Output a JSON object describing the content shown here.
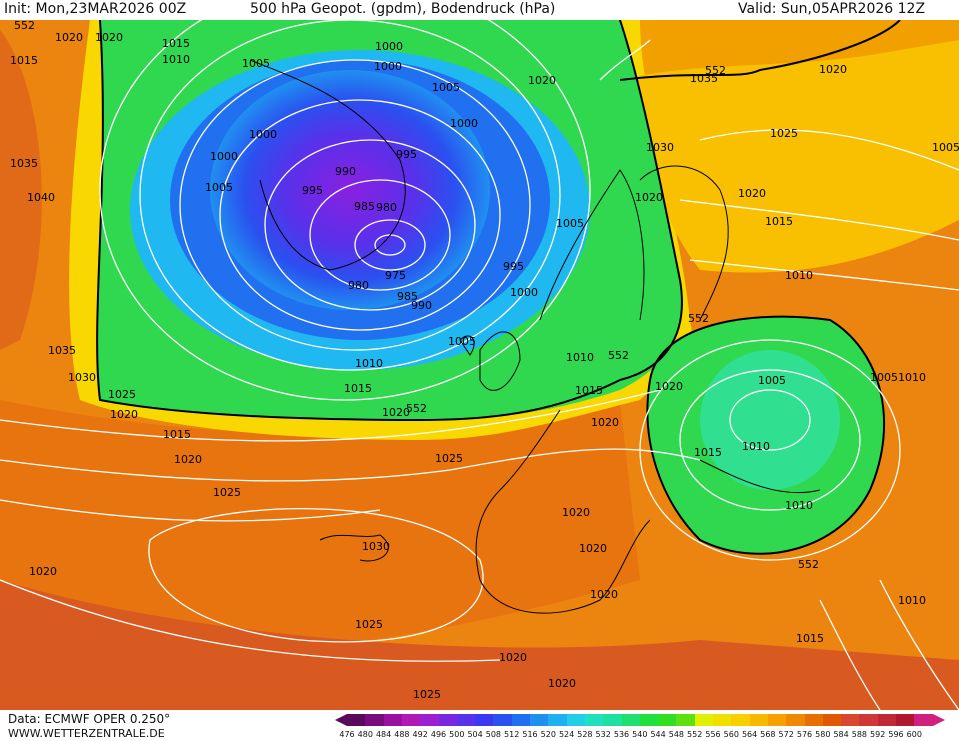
{
  "header": {
    "init": "Init: Mon,23MAR2026 00Z",
    "title": "500 hPa Geopot. (gpdm), Bodendruck (hPa)",
    "valid": "Valid: Sun,05APR2026 12Z"
  },
  "footer": {
    "source": "Data: ECMWF OPER 0.250°",
    "website": "WWW.WETTERZENTRALE.DE"
  },
  "colorbar": {
    "labels": [
      "476",
      "480",
      "484",
      "488",
      "492",
      "496",
      "500",
      "504",
      "508",
      "512",
      "516",
      "520",
      "524",
      "528",
      "532",
      "536",
      "540",
      "544",
      "548",
      "552",
      "556",
      "560",
      "564",
      "568",
      "572",
      "576",
      "580",
      "584",
      "588",
      "592",
      "596",
      "600"
    ],
    "colors": [
      "#5a0a5c",
      "#7a0d7e",
      "#9a10a0",
      "#b018b8",
      "#9a20d0",
      "#7a28e0",
      "#5a30ea",
      "#3a38f0",
      "#2a50f0",
      "#2070f0",
      "#2090f0",
      "#20b0f0",
      "#20d0e8",
      "#20e0c0",
      "#20e0a0",
      "#20e070",
      "#20e040",
      "#30e020",
      "#60e010",
      "#e0f000",
      "#f0e000",
      "#f8d000",
      "#f8b800",
      "#f8a000",
      "#f08800",
      "#e87000",
      "#e05800",
      "#d84830",
      "#d03838",
      "#c02838",
      "#b01830",
      "#d02080"
    ]
  },
  "isobars": [
    "1020",
    "1020",
    "1015",
    "1015",
    "1010",
    "1005",
    "1000",
    "1000",
    "1005",
    "1000",
    "1000",
    "1005",
    "1000",
    "995",
    "990",
    "995",
    "985",
    "980",
    "975",
    "980",
    "985",
    "990",
    "995",
    "1000",
    "1005",
    "1010",
    "1015",
    "1020",
    "1035",
    "1040",
    "1035",
    "1030",
    "1025",
    "1020",
    "1015",
    "1020",
    "1025",
    "1025",
    "1030",
    "1020",
    "1020",
    "1020",
    "1025",
    "1020",
    "1020",
    "1020",
    "1025",
    "1020",
    "1035",
    "1020",
    "1030",
    "1025",
    "1020",
    "1015",
    "1010",
    "1005",
    "1010",
    "1015",
    "1020",
    "1010",
    "1005",
    "1010",
    "1010",
    "1010",
    "1015",
    "1010",
    "1015",
    "1005",
    "1020",
    "1020",
    "1005"
  ],
  "height_labels": [
    "552",
    "552",
    "552",
    "552",
    "552",
    "552",
    "552"
  ]
}
